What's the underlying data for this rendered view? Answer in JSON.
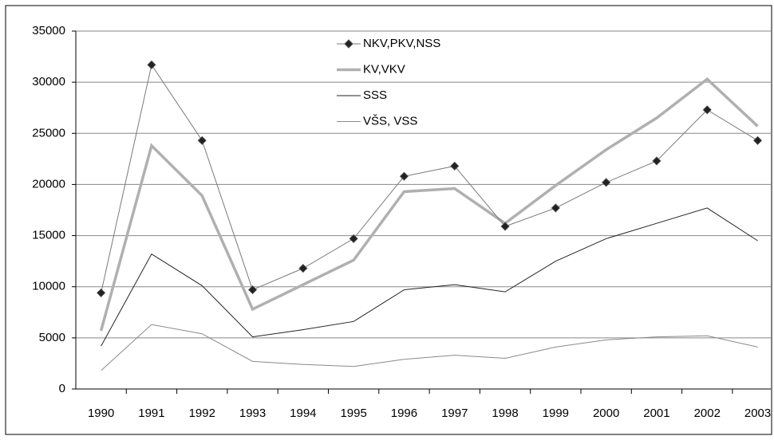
{
  "chart_data": {
    "type": "line",
    "categories": [
      "1990",
      "1991",
      "1992",
      "1993",
      "1994",
      "1995",
      "1996",
      "1997",
      "1998",
      "1999",
      "2000",
      "2001",
      "2002",
      "2003"
    ],
    "series": [
      {
        "name": "NKV,PKV,NSS",
        "color": "#7a7a7a",
        "marker": "diamond",
        "width": 1,
        "values": [
          9400,
          31700,
          24300,
          9700,
          11800,
          14700,
          20800,
          21800,
          15900,
          17700,
          20200,
          22300,
          27300,
          24300
        ]
      },
      {
        "name": "KV,VKV",
        "color": "#b0b0b0",
        "marker": null,
        "width": 3.5,
        "values": [
          5700,
          23800,
          18900,
          7800,
          10200,
          12600,
          19300,
          19600,
          16200,
          19900,
          23400,
          26500,
          30300,
          25700
        ]
      },
      {
        "name": "SSS",
        "color": "#222222",
        "marker": null,
        "width": 1,
        "values": [
          4200,
          13200,
          10100,
          5100,
          5800,
          6600,
          9700,
          10200,
          9500,
          12500,
          14700,
          16200,
          17700,
          14500
        ]
      },
      {
        "name": "VŠS, VSS",
        "color": "#8a8a8a",
        "marker": null,
        "width": 1,
        "values": [
          1800,
          6300,
          5400,
          2700,
          2400,
          2200,
          2900,
          3300,
          3000,
          4100,
          4800,
          5100,
          5200,
          4100
        ]
      }
    ],
    "ylim": [
      0,
      35000
    ],
    "yticks": [
      0,
      5000,
      10000,
      15000,
      20000,
      25000,
      30000,
      35000
    ],
    "grid": true,
    "legend": "top"
  }
}
